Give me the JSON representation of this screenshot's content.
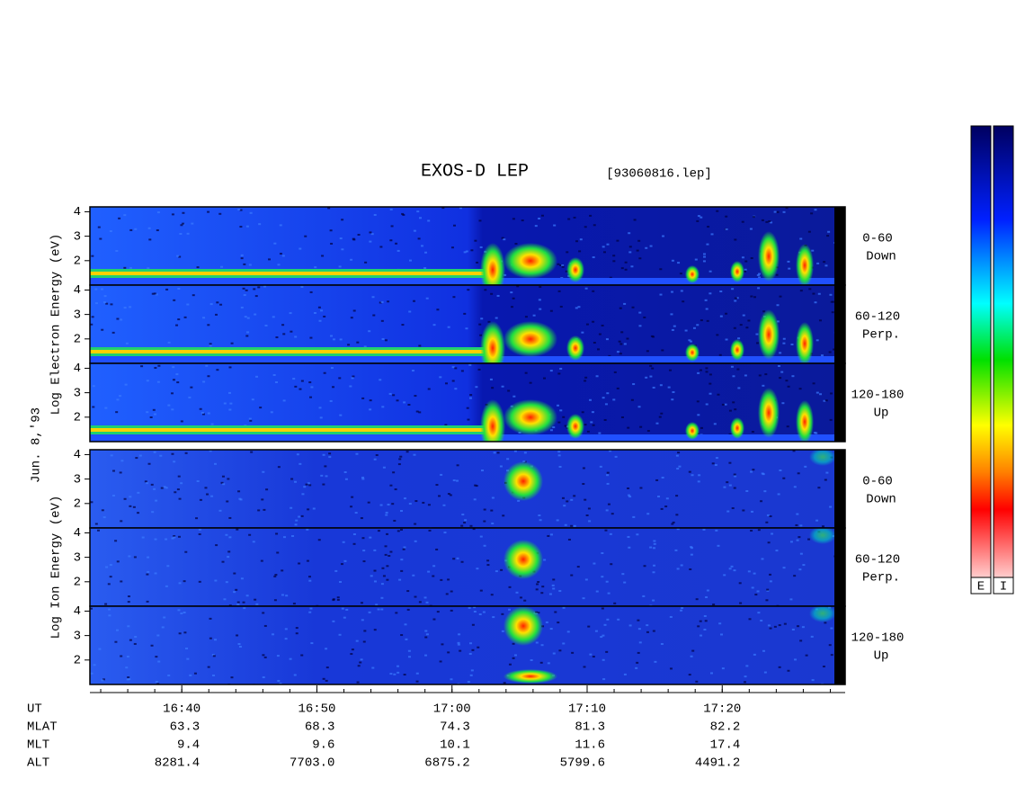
{
  "chart_data": {
    "type": "spectrogram",
    "title": "EXOS-D LEP",
    "subtitle": "[93060816.lep]",
    "date_label": "Jun. 8,'93",
    "xlim": [
      993.2,
      1049.1
    ],
    "xticks": [
      {
        "value": 1000,
        "label": "16:40"
      },
      {
        "value": 1010,
        "label": "16:50"
      },
      {
        "value": 1020,
        "label": "17:00"
      },
      {
        "value": 1030,
        "label": "17:10"
      },
      {
        "value": 1040,
        "label": "17:20"
      }
    ],
    "ylim": [
      1,
      4.2
    ],
    "yticks": [
      2,
      3,
      4
    ],
    "groups": [
      {
        "label": "Log Electron Energy (eV)",
        "panels": [
          {
            "angle": "0-60",
            "direction": "Down"
          },
          {
            "angle": "60-120",
            "direction": "Perp."
          },
          {
            "angle": "120-180",
            "direction": "Up"
          }
        ]
      },
      {
        "label": "Log Ion Energy (eV)",
        "panels": [
          {
            "angle": "0-60",
            "direction": "Down"
          },
          {
            "angle": "60-120",
            "direction": "Perp."
          },
          {
            "angle": "120-180",
            "direction": "Up"
          }
        ]
      }
    ],
    "rows": [
      {
        "name": "UT"
      },
      {
        "name": "MLAT",
        "values": [
          "63.3",
          "68.3",
          "74.3",
          "81.3",
          "82.2"
        ]
      },
      {
        "name": "MLT",
        "values": [
          "9.4",
          "9.6",
          "10.1",
          "11.6",
          "17.4"
        ]
      },
      {
        "name": "ALT",
        "values": [
          "8281.4",
          "7703.0",
          "6875.2",
          "5799.6",
          "4491.2"
        ]
      }
    ],
    "colorbars": [
      "E",
      "I"
    ]
  }
}
